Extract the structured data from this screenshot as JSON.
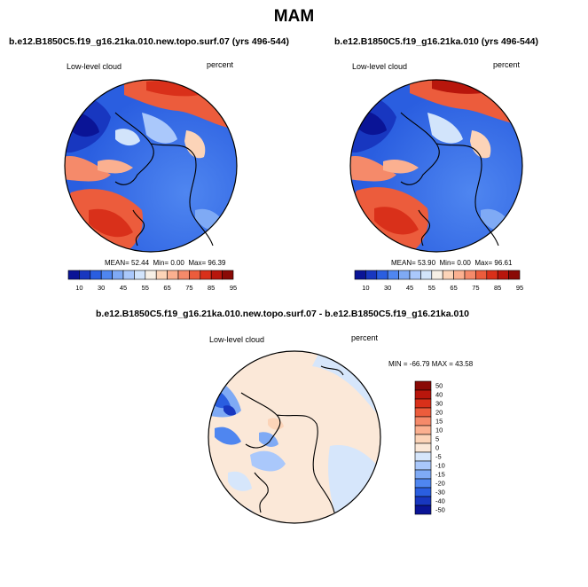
{
  "page_title": "MAM",
  "panels": [
    {
      "title": "b.e12.B1850C5.f19_g16.21ka.010.new.topo.surf.07 (yrs 496-544)",
      "left_label": "Low-level cloud",
      "right_label": "percent",
      "stats": {
        "mean_label": "MEAN=",
        "mean": "52.44",
        "min_label": "Min=",
        "min": "0.00",
        "max_label": "Max=",
        "max": "96.39"
      },
      "colorbar": {
        "colors": [
          "#0a1496",
          "#1837c0",
          "#2a5ee0",
          "#4f86f0",
          "#7faaf5",
          "#aac8fb",
          "#d2e4fb",
          "#f7f0e6",
          "#fcd4b8",
          "#fbb090",
          "#f58a6a",
          "#ec5c3c",
          "#d9301a",
          "#b8160c",
          "#8a0a06"
        ],
        "tick_labels": [
          "10",
          "30",
          "45",
          "55",
          "65",
          "75",
          "85",
          "95"
        ]
      }
    },
    {
      "title": "b.e12.B1850C5.f19_g16.21ka.010 (yrs 496-544)",
      "left_label": "Low-level cloud",
      "right_label": "percent",
      "stats": {
        "mean_label": "MEAN=",
        "mean": "53.90",
        "min_label": "Min=",
        "min": "0.00",
        "max_label": "Max=",
        "max": "96.61"
      },
      "colorbar": {
        "colors": [
          "#0a1496",
          "#1837c0",
          "#2a5ee0",
          "#4f86f0",
          "#7faaf5",
          "#aac8fb",
          "#d2e4fb",
          "#f7f0e6",
          "#fcd4b8",
          "#fbb090",
          "#f58a6a",
          "#ec5c3c",
          "#d9301a",
          "#b8160c",
          "#8a0a06"
        ],
        "tick_labels": [
          "10",
          "30",
          "45",
          "55",
          "65",
          "75",
          "85",
          "95"
        ]
      }
    },
    {
      "title": "b.e12.B1850C5.f19_g16.21ka.010.new.topo.surf.07 - b.e12.B1850C5.f19_g16.21ka.010",
      "left_label": "Low-level cloud",
      "right_label": "percent",
      "stats_text": "MIN = -66.79 MAX =  43.58",
      "colorbar": {
        "colors": [
          "#8a0a06",
          "#b8160c",
          "#d9301a",
          "#ec5c3c",
          "#f58a6a",
          "#fbb090",
          "#fcd4b8",
          "#fbe8d8",
          "#d6e6fb",
          "#aac8fb",
          "#7faaf5",
          "#4f86f0",
          "#2a5ee0",
          "#1837c0",
          "#0a1496"
        ],
        "tick_labels": [
          "50",
          "40",
          "30",
          "20",
          "15",
          "10",
          "5",
          "0",
          "-5",
          "-10",
          "-15",
          "-20",
          "-30",
          "-40",
          "-50"
        ]
      }
    }
  ]
}
